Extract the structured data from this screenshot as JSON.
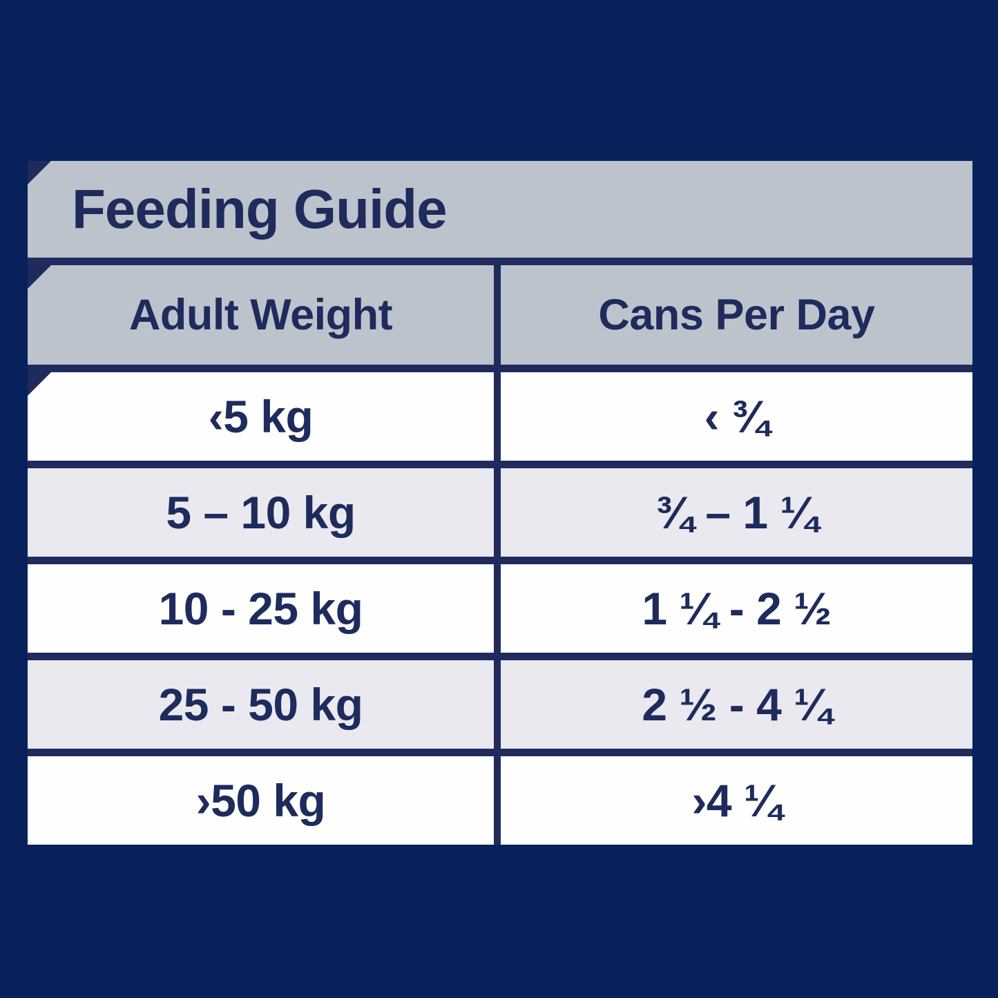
{
  "title": "Feeding Guide",
  "colors": {
    "page_background": "#07215b",
    "table_rule_navy": "#1e2b5c",
    "header_gray": "#bcc3cc",
    "row_alt_gray": "#e9e9ef",
    "row_white": "#fefefe",
    "text_navy": "#1e2b5c"
  },
  "table": {
    "columns": [
      {
        "label": "Adult Weight"
      },
      {
        "label": "Cans Per Day"
      }
    ],
    "rows": [
      {
        "weight": "‹5 kg",
        "cans": "‹ ¾"
      },
      {
        "weight": "5 – 10 kg",
        "cans": "¾ – 1 ¼"
      },
      {
        "weight": "10 - 25 kg",
        "cans": "1 ¼ - 2 ½"
      },
      {
        "weight": "25 - 50 kg",
        "cans": "2 ½ - 4 ¼"
      },
      {
        "weight": "›50 kg",
        "cans": "›4 ¼"
      }
    ]
  },
  "chart_data": {
    "type": "table",
    "title": "Feeding Guide",
    "columns": [
      "Adult Weight",
      "Cans Per Day"
    ],
    "rows": [
      [
        "‹5 kg",
        "‹ ¾"
      ],
      [
        "5 – 10 kg",
        "¾ – 1 ¼"
      ],
      [
        "10 - 25 kg",
        "1 ¼ - 2 ½"
      ],
      [
        "25 - 50 kg",
        "2 ½ - 4 ¼"
      ],
      [
        "›50 kg",
        "›4 ¼"
      ]
    ]
  }
}
